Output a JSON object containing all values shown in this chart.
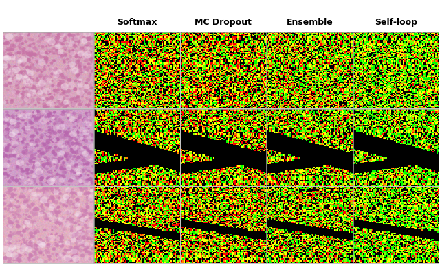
{
  "col_headers": [
    "Softmax",
    "MC Dropout",
    "Ensemble",
    "Self-loop"
  ],
  "n_rows": 3,
  "n_cols": 5,
  "header_fontsize": 9,
  "header_fontweight": "bold",
  "figure_bg": "#ffffff",
  "histo_row0": {
    "base_hue": [
      0.85,
      0.65,
      0.75
    ],
    "cell_hue": [
      0.78,
      0.45,
      0.65
    ],
    "seed": 42
  },
  "histo_row1": {
    "base_hue": [
      0.82,
      0.62,
      0.78
    ],
    "cell_hue": [
      0.72,
      0.4,
      0.68
    ],
    "seed": 137
  },
  "histo_row2": {
    "base_hue": [
      0.88,
      0.68,
      0.76
    ],
    "cell_hue": [
      0.8,
      0.5,
      0.7
    ],
    "seed": 271
  },
  "dot_colors": [
    "#00ff00",
    "#80ff00",
    "#ffff00",
    "#ff8000",
    "#ff0000"
  ],
  "col_weights": {
    "softmax": [
      0.2,
      0.2,
      0.25,
      0.15,
      0.2
    ],
    "mcdropout": [
      0.18,
      0.18,
      0.25,
      0.15,
      0.24
    ],
    "ensemble": [
      0.22,
      0.22,
      0.25,
      0.15,
      0.16
    ],
    "selfloop": [
      0.3,
      0.25,
      0.25,
      0.12,
      0.08
    ]
  },
  "block_size": 4,
  "grid_size": 64,
  "density": 0.72,
  "row1_black_path": true,
  "row2_black_path": true
}
